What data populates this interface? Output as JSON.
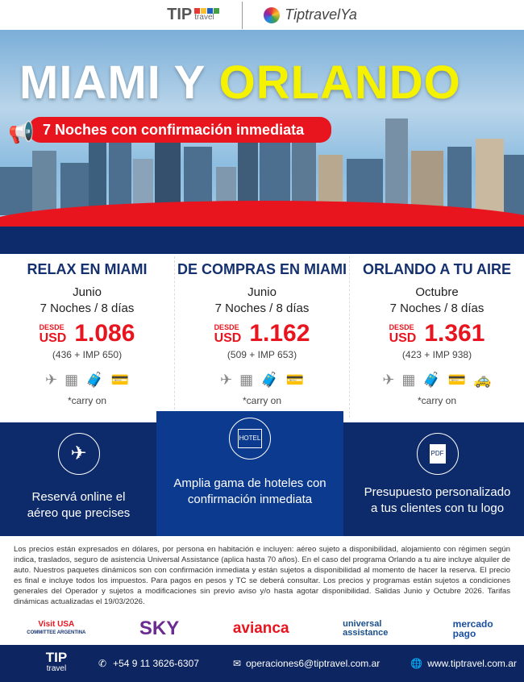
{
  "header": {
    "logo_tip": "TIP",
    "logo_tip_sub": "travel",
    "logo_ya": "TiptravelYa"
  },
  "hero": {
    "title_white": "MIAMI Y",
    "title_yellow": "ORLANDO",
    "banner": "7 Noches con confirmación inmediata"
  },
  "packages": [
    {
      "name": "RELAX EN MIAMI",
      "month": "Junio",
      "duration": "7 Noches / 8 días",
      "desde": "DESDE",
      "currency": "USD",
      "price": "1.086",
      "breakdown": "(436 + IMP 650)",
      "icons": [
        "plane-icon",
        "hotel-icon",
        "luggage-icon",
        "insurance-card-icon"
      ],
      "note": "*carry on"
    },
    {
      "name": "DE COMPRAS EN MIAMI",
      "month": "Junio",
      "duration": "7 Noches / 8 días",
      "desde": "DESDE",
      "currency": "USD",
      "price": "1.162",
      "breakdown": "(509 + IMP 653)",
      "icons": [
        "plane-icon",
        "hotel-icon",
        "luggage-icon",
        "insurance-card-icon"
      ],
      "note": "*carry on"
    },
    {
      "name": "ORLANDO A TU AIRE",
      "month": "Octubre",
      "duration": "7 Noches / 8 días",
      "desde": "DESDE",
      "currency": "USD",
      "price": "1.361",
      "breakdown": "(423 + IMP 938)",
      "icons": [
        "plane-icon",
        "hotel-icon",
        "luggage-icon",
        "insurance-card-icon",
        "car-icon"
      ],
      "note": "*carry on"
    }
  ],
  "features": [
    {
      "icon": "plane-icon",
      "text": "Reservá online el aéreo que precises"
    },
    {
      "icon": "hotel-icon",
      "badge": "HOTEL",
      "text": "Amplia gama de hoteles con confirmación inmediata"
    },
    {
      "icon": "pdf-icon",
      "badge": "PDF",
      "text": "Presupuesto personalizado a tus clientes con tu logo"
    }
  ],
  "disclaimer": "Los precios están expresados en dólares, por persona en habitación e incluyen: aéreo sujeto a disponibilidad, alojamiento con régimen según indica, traslados, seguro de asistencia Universal Assistance (aplica hasta 70 años). En el caso del programa Orlando a tu aire incluye alquiler de auto. Nuestros paquetes dinámicos son con confirmación inmediata y están sujetos a disponibilidad al momento de hacer la reserva. El precio es final e incluye todos los impuestos. Para pagos en pesos y TC se deberá consultar. Los precios y programas están sujetos a condiciones generales del Operador y sujetos a modificaciones sin previo aviso y/o hasta agotar disponibilidad. Salidas Junio y Octubre 2026. Tarifas dinámicas actualizadas el 19/03/2026.",
  "sponsors": {
    "visit_usa": "Visit USA",
    "visit_usa_sub": "COMMITTEE ARGENTINA",
    "sky": "SKY",
    "avianca": "avianca",
    "universal": "universal assistance",
    "mercado": "mercado pago"
  },
  "footer": {
    "logo": "TIP",
    "logo_sub": "travel",
    "phone": "+54 9 11 3626-6307",
    "email": "operaciones6@tiptravel.com.ar",
    "web": "www.tiptravel.com.ar"
  },
  "colors": {
    "navy": "#0d2a6b",
    "red": "#e8141e",
    "yellow": "#f5f200"
  }
}
